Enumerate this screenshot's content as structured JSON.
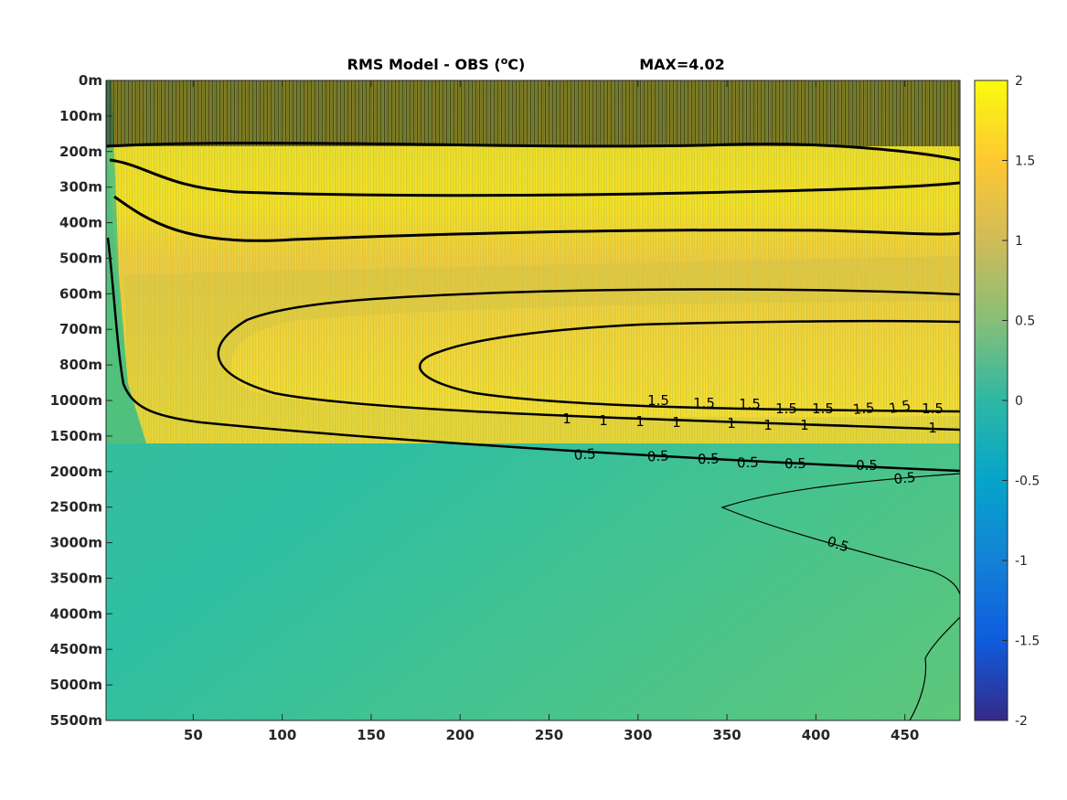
{
  "chart_data": {
    "type": "heatmap",
    "title": "RMS Model - OBS (°C)",
    "title_parts": {
      "prefix": "RMS Model - OBS (",
      "superscript": "o",
      "suffix": "C)"
    },
    "max_label": "MAX=4.02",
    "x_ticks": [
      50,
      100,
      150,
      200,
      250,
      300,
      350,
      400,
      450
    ],
    "x_range": [
      1,
      481
    ],
    "y_ticks": [
      "0m",
      "100m",
      "200m",
      "300m",
      "400m",
      "500m",
      "600m",
      "700m",
      "800m",
      "1000m",
      "1500m",
      "2000m",
      "2500m",
      "3000m",
      "3500m",
      "4000m",
      "4500m",
      "5000m",
      "5500m"
    ],
    "colorbar": {
      "ticks": [
        "2",
        "1.5",
        "1",
        "0.5",
        "0",
        "-0.5",
        "-1",
        "-1.5",
        "-2"
      ],
      "range": [
        -2,
        2
      ],
      "colormap": "parula"
    },
    "contour_levels": [
      0.5,
      1,
      1.5,
      2
    ],
    "contour_labels": [
      "0.5",
      "0.5",
      "0.5",
      "0.5",
      "0.5",
      "0.5",
      "0.5",
      "0.5",
      "1",
      "1",
      "1",
      "1",
      "1",
      "1",
      "1",
      "1",
      "1.5",
      "1.5",
      "1.5",
      "1.5",
      "1.5",
      "1.5",
      "1.5",
      "1.5"
    ],
    "colors": {
      "axes_background": "#4cc586",
      "contour": "#000000"
    }
  }
}
